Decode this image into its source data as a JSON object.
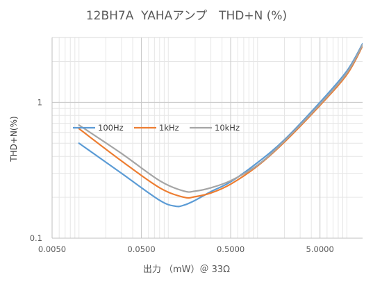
{
  "chart_data": {
    "type": "line",
    "title": "12BH7A  YAHAアンプ　THD+N (%)",
    "xlabel": "出力 （mW）＠ 33Ω",
    "ylabel": "THD+N(%)",
    "x_scale": "log",
    "y_scale": "log",
    "xlim": [
      0.005,
      15
    ],
    "ylim": [
      0.1,
      3
    ],
    "x_ticks": [
      0.005,
      0.05,
      0.5,
      5
    ],
    "x_tick_labels": [
      "0.0050",
      "0.0500",
      "0.5000",
      "5.0000"
    ],
    "y_ticks": [
      0.1,
      1
    ],
    "y_tick_labels": [
      "0.1",
      "1"
    ],
    "grid": true,
    "legend_position": "inside-top-left",
    "series": [
      {
        "name": "100Hz",
        "color": "#5B9BD5",
        "x": [
          0.01,
          0.03,
          0.08,
          0.12,
          0.15,
          0.2,
          0.3,
          0.5,
          1,
          2,
          5,
          10,
          15
        ],
        "y": [
          0.5,
          0.3,
          0.19,
          0.172,
          0.175,
          0.19,
          0.22,
          0.26,
          0.36,
          0.53,
          1.0,
          1.7,
          2.7
        ]
      },
      {
        "name": "1kHz",
        "color": "#ED7D31",
        "x": [
          0.01,
          0.03,
          0.08,
          0.15,
          0.2,
          0.3,
          0.5,
          1,
          2,
          5,
          10,
          15
        ],
        "y": [
          0.64,
          0.37,
          0.235,
          0.2,
          0.202,
          0.215,
          0.25,
          0.34,
          0.51,
          0.95,
          1.6,
          2.6
        ]
      },
      {
        "name": "10kHz",
        "color": "#A5A5A5",
        "x": [
          0.01,
          0.03,
          0.08,
          0.15,
          0.2,
          0.3,
          0.5,
          1,
          2,
          5,
          10,
          15
        ],
        "y": [
          0.68,
          0.42,
          0.265,
          0.222,
          0.222,
          0.235,
          0.265,
          0.345,
          0.52,
          0.97,
          1.65,
          2.65
        ]
      }
    ]
  }
}
